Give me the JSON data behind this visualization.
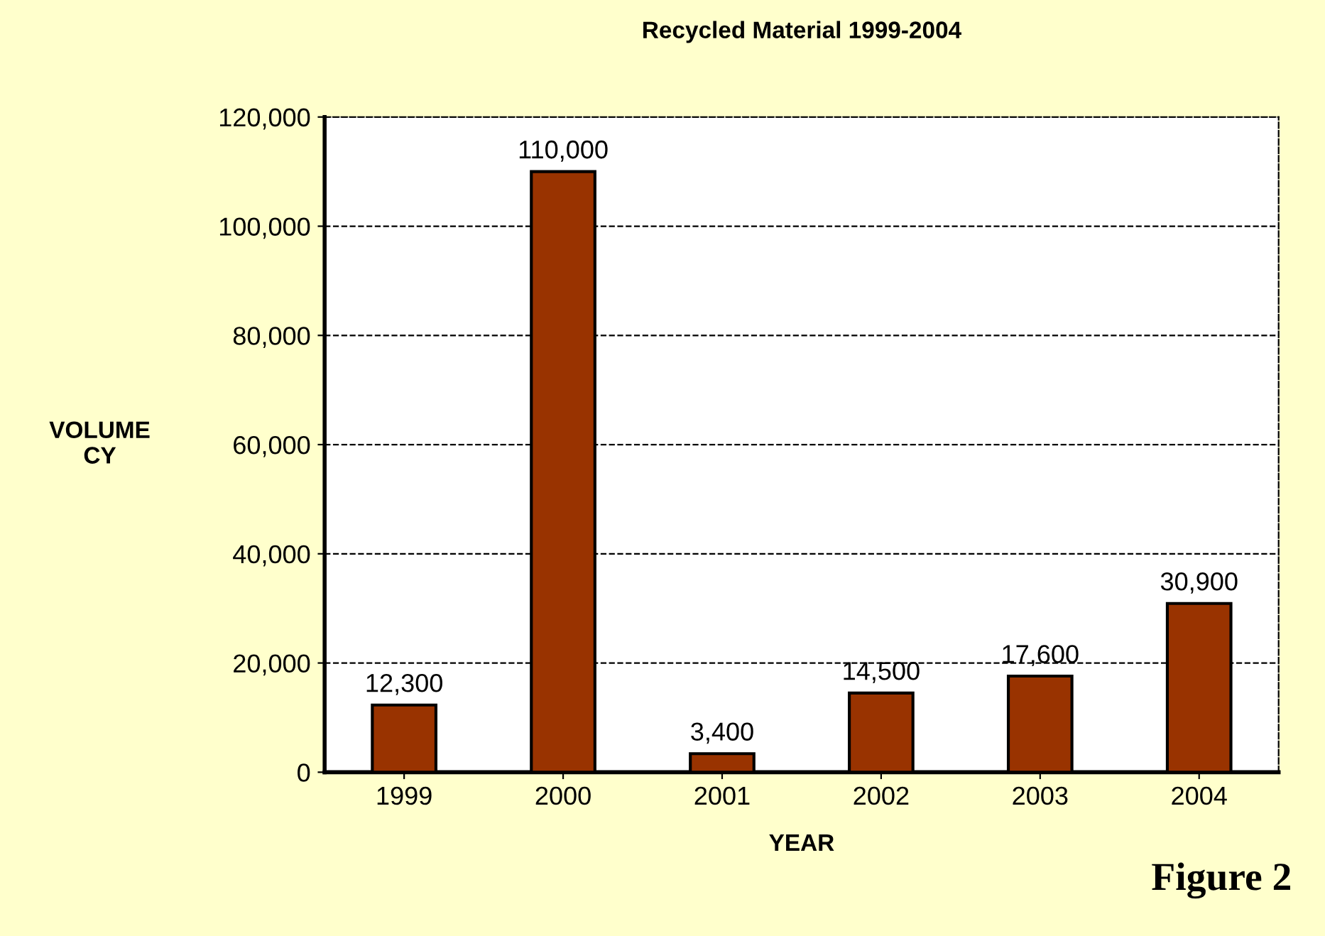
{
  "chart_data": {
    "type": "bar",
    "title": "Recycled Material 1999-2004",
    "xlabel": "YEAR",
    "ylabel": "VOLUME\nCY",
    "categories": [
      "1999",
      "2000",
      "2001",
      "2002",
      "2003",
      "2004"
    ],
    "values": [
      12300,
      110000,
      3400,
      14500,
      17600,
      30900
    ],
    "color": "#993300",
    "data_labels": true,
    "value_labels": [
      "12,300",
      "110,000",
      "3,400",
      "14,500",
      "17,600",
      "30,900"
    ],
    "ylim": [
      0,
      120000
    ],
    "yticks": [
      {
        "value": 0,
        "label": "0"
      },
      {
        "value": 20000,
        "label": "20,000"
      },
      {
        "value": 40000,
        "label": "40,000"
      },
      {
        "value": 60000,
        "label": "60,000"
      },
      {
        "value": 80000,
        "label": "80,000"
      },
      {
        "value": 100000,
        "label": "100,000"
      },
      {
        "value": 120000,
        "label": "120,000"
      }
    ],
    "grid": "y",
    "annotations": [
      "Figure 2"
    ]
  }
}
